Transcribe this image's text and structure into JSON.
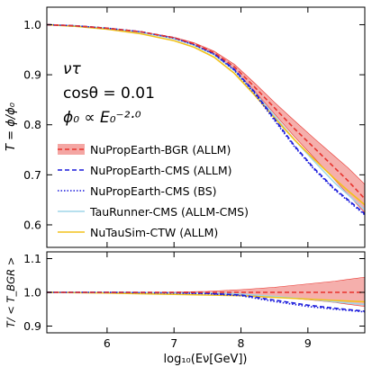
{
  "chart_data": [
    {
      "panel": "main",
      "type": "line",
      "ylabel": "T = ϕ/ϕ₀",
      "xlim": [
        5.1,
        9.85
      ],
      "ylim": [
        0.555,
        1.035
      ],
      "yticks": [
        "0.6",
        "0.7",
        "0.8",
        "0.9",
        "1.0"
      ],
      "yticks_val": [
        0.6,
        0.7,
        0.8,
        0.9,
        1.0
      ],
      "annotations": {
        "particle": "ντ",
        "angle": "cosθ = 0.01",
        "spectrum": "ϕ₀ ∝ E₀⁻²·⁰"
      },
      "legend": {
        "placement": "center-left",
        "entries": [
          "NuPropEarth-BGR (ALLM)",
          "NuPropEarth-CMS (ALLM)",
          "NuPropEarth-CMS (BS)",
          "TauRunner-CMS (ALLM-CMS)",
          "NuTauSim-CTW (ALLM)"
        ]
      },
      "series": [
        {
          "name": "NuPropEarth-BGR (ALLM)",
          "color": "#e8322c",
          "style": "dashed-with-band",
          "x": [
            5.1,
            5.5,
            6.0,
            6.5,
            7.0,
            7.3,
            7.6,
            7.9,
            8.2,
            8.5,
            8.8,
            9.1,
            9.4,
            9.6,
            9.85
          ],
          "y": [
            1.0,
            0.998,
            0.993,
            0.986,
            0.974,
            0.962,
            0.944,
            0.916,
            0.876,
            0.834,
            0.792,
            0.753,
            0.714,
            0.688,
            0.652
          ],
          "band_low": [
            1.0,
            0.998,
            0.993,
            0.986,
            0.973,
            0.96,
            0.941,
            0.91,
            0.868,
            0.822,
            0.776,
            0.733,
            0.69,
            0.661,
            0.624
          ],
          "band_high": [
            1.0,
            0.998,
            0.993,
            0.986,
            0.975,
            0.964,
            0.947,
            0.921,
            0.884,
            0.845,
            0.808,
            0.772,
            0.737,
            0.714,
            0.681
          ]
        },
        {
          "name": "NuPropEarth-CMS (ALLM)",
          "color": "#1a1adb",
          "style": "dashed",
          "x": [
            5.1,
            5.5,
            6.0,
            6.5,
            7.0,
            7.3,
            7.6,
            7.9,
            8.2,
            8.5,
            8.8,
            9.1,
            9.4,
            9.6,
            9.85
          ],
          "y": [
            1.0,
            0.998,
            0.993,
            0.986,
            0.974,
            0.961,
            0.942,
            0.911,
            0.866,
            0.812,
            0.758,
            0.712,
            0.672,
            0.65,
            0.622
          ]
        },
        {
          "name": "NuPropEarth-CMS (BS)",
          "color": "#1a1adb",
          "style": "dotted",
          "x": [
            5.1,
            5.5,
            6.0,
            6.5,
            7.0,
            7.3,
            7.6,
            7.9,
            8.2,
            8.5,
            8.8,
            9.1,
            9.4,
            9.6,
            9.85
          ],
          "y": [
            1.0,
            0.998,
            0.993,
            0.986,
            0.973,
            0.96,
            0.941,
            0.909,
            0.863,
            0.809,
            0.756,
            0.71,
            0.67,
            0.648,
            0.62
          ]
        },
        {
          "name": "TauRunner-CMS (ALLM-CMS)",
          "color": "#9fd6e8",
          "style": "solid",
          "x": [
            5.1,
            5.5,
            6.0,
            6.5,
            7.0,
            7.3,
            7.6,
            7.9,
            8.2,
            8.5,
            8.8,
            9.1,
            9.4,
            9.6,
            9.85
          ],
          "y": [
            1.0,
            0.998,
            0.993,
            0.985,
            0.972,
            0.959,
            0.94,
            0.909,
            0.865,
            0.818,
            0.77,
            0.726,
            0.684,
            0.66,
            0.63
          ]
        },
        {
          "name": "NuTauSim-CTW (ALLM)",
          "color": "#f2c21b",
          "style": "solid",
          "x": [
            5.1,
            5.5,
            6.0,
            6.5,
            7.0,
            7.3,
            7.6,
            7.9,
            8.2,
            8.5,
            8.8,
            9.1,
            9.4,
            9.6,
            9.85
          ],
          "y": [
            1.0,
            0.997,
            0.991,
            0.982,
            0.968,
            0.955,
            0.935,
            0.903,
            0.86,
            0.814,
            0.77,
            0.73,
            0.692,
            0.668,
            0.64
          ]
        }
      ]
    },
    {
      "panel": "ratio",
      "type": "line",
      "xlabel": "log₁₀(Eν[GeV])",
      "ylabel": "T/ < T_BGR >",
      "xlim": [
        5.1,
        9.85
      ],
      "ylim": [
        0.88,
        1.12
      ],
      "xticks": [
        "6",
        "7",
        "8",
        "9"
      ],
      "xticks_val": [
        6,
        7,
        8,
        9
      ],
      "yticks": [
        "0.9",
        "1.0",
        "1.1"
      ],
      "yticks_val": [
        0.9,
        1.0,
        1.1
      ],
      "series": [
        {
          "name": "NuPropEarth-BGR (ALLM)",
          "color": "#e8322c",
          "style": "dashed-with-band",
          "x": [
            5.1,
            6.0,
            7.0,
            7.5,
            8.0,
            8.5,
            9.0,
            9.4,
            9.85
          ],
          "y": [
            1.0,
            1.0,
            1.0,
            1.0,
            1.0,
            1.0,
            1.0,
            1.0,
            1.0
          ],
          "band_low": [
            1.0,
            1.0,
            0.999,
            0.997,
            0.993,
            0.986,
            0.978,
            0.97,
            0.958
          ],
          "band_high": [
            1.0,
            1.0,
            1.001,
            1.003,
            1.008,
            1.015,
            1.025,
            1.033,
            1.045
          ]
        },
        {
          "name": "NuPropEarth-CMS (ALLM)",
          "color": "#1a1adb",
          "style": "dashed",
          "x": [
            5.1,
            6.0,
            7.0,
            7.5,
            8.0,
            8.5,
            9.0,
            9.4,
            9.85
          ],
          "y": [
            1.0,
            1.0,
            0.999,
            0.997,
            0.992,
            0.977,
            0.962,
            0.953,
            0.944
          ]
        },
        {
          "name": "NuPropEarth-CMS (BS)",
          "color": "#1a1adb",
          "style": "dotted",
          "x": [
            5.1,
            6.0,
            7.0,
            7.5,
            8.0,
            8.5,
            9.0,
            9.4,
            9.85
          ],
          "y": [
            1.0,
            1.0,
            0.998,
            0.996,
            0.99,
            0.973,
            0.958,
            0.95,
            0.942
          ]
        },
        {
          "name": "TauRunner-CMS (ALLM-CMS)",
          "color": "#9fd6e8",
          "style": "solid",
          "x": [
            5.1,
            6.0,
            7.0,
            7.5,
            8.0,
            8.5,
            9.0,
            9.4,
            9.85
          ],
          "y": [
            1.0,
            1.0,
            0.999,
            0.998,
            0.995,
            0.988,
            0.98,
            0.972,
            0.964
          ]
        },
        {
          "name": "NuTauSim-CTW (ALLM)",
          "color": "#f2c21b",
          "style": "solid",
          "x": [
            5.1,
            6.0,
            7.0,
            7.5,
            8.0,
            8.5,
            9.0,
            9.4,
            9.85
          ],
          "y": [
            1.0,
            0.998,
            0.994,
            0.992,
            0.99,
            0.985,
            0.98,
            0.976,
            0.972
          ]
        }
      ]
    }
  ]
}
